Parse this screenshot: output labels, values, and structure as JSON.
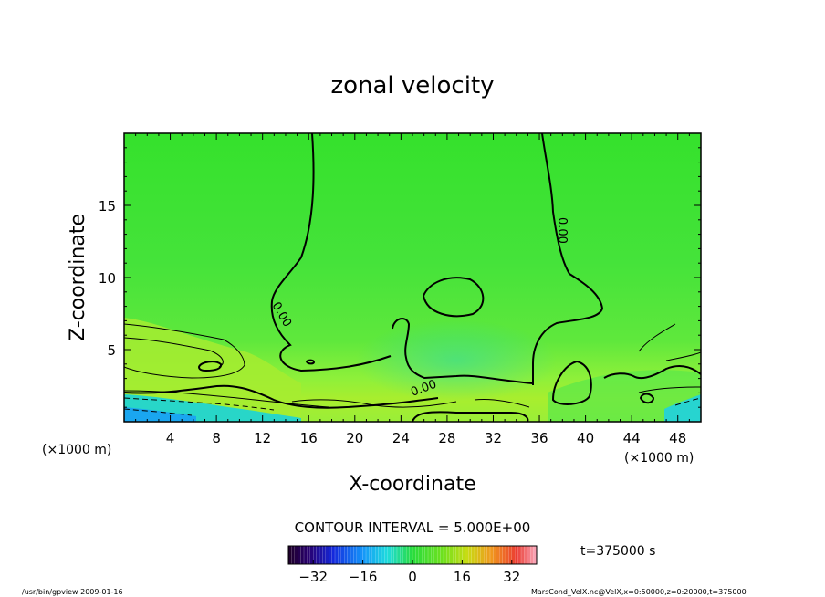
{
  "chart_data": {
    "type": "heatmap",
    "title": "zonal velocity",
    "xlabel": "X-coordinate",
    "ylabel": "Z-coordinate",
    "x_unit_left": "(×1000 m)",
    "x_unit_right": "(×1000 m)",
    "xlim": [
      0,
      50
    ],
    "ylim": [
      0,
      20
    ],
    "x_ticks": [
      4,
      8,
      12,
      16,
      20,
      24,
      28,
      32,
      36,
      40,
      44,
      48
    ],
    "y_ticks": [
      5,
      10,
      15
    ],
    "contour_label_zero": "0.00",
    "contour_interval_text": "CONTOUR INTERVAL = 5.000E+00",
    "time_text": "t=375000 s",
    "colorbar": {
      "range": [
        -40,
        40
      ],
      "ticks": [
        -32,
        -16,
        0,
        16,
        32
      ],
      "tick_labels": [
        "−32",
        "−16",
        "0",
        "16",
        "32"
      ]
    }
  },
  "footer": {
    "left": "/usr/bin/gpview  2009-01-16",
    "right": "MarsCond_VelX.nc@VelX,x=0:50000,z=0:20000,t=375000"
  }
}
